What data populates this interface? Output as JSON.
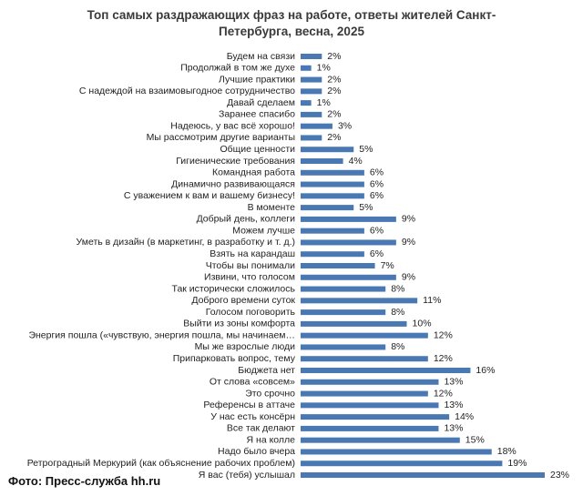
{
  "chart_data": {
    "type": "barh",
    "title": "Топ самых раздражающих фраз на работе, ответы жителей Санкт-Петербурга, весна, 2025",
    "caption": "Фото: Пресс-служба hh.ru",
    "color": "#4a78b3",
    "categories": [
      "Будем на связи",
      "Продолжай в том же духе",
      "Лучшие практики",
      "С надеждой на взаимовыгодное сотрудничество",
      "Давай сделаем",
      "Заранее спасибо",
      "Надеюсь, у вас всё хорошо!",
      "Мы рассмотрим другие варианты",
      "Общие ценности",
      "Гигиенические требования",
      "Командная работа",
      "Динамично развивающаяся",
      "С уважением к вам и вашему бизнесу!",
      "В моменте",
      "Добрый день, коллеги",
      "Можем лучше",
      "Уметь в дизайн (в маркетинг, в разработку и т. д.)",
      "Взять на карандаш",
      "Чтобы вы понимали",
      "Извини, что голосом",
      "Так исторически сложилось",
      "Доброго времени суток",
      "Голосом поговорить",
      "Выйти из зоны комфорта",
      "Энергия пошла («чувствую, энергия пошла, мы начинаем…",
      "Мы же взрослые люди",
      "Припарковать вопрос, тему",
      "Бюджета нет",
      "От слова «совсем»",
      "Это срочно",
      "Референсы в аттаче",
      "У нас есть консёрн",
      "Все так делают",
      "Я на колле",
      "Надо было вчера",
      "Ретроградный Меркурий (как объяснение рабочих проблем)",
      "Я вас (тебя) услышал"
    ],
    "values": [
      2,
      1,
      2,
      2,
      1,
      2,
      3,
      2,
      5,
      4,
      6,
      6,
      6,
      5,
      9,
      6,
      9,
      6,
      7,
      9,
      8,
      11,
      8,
      10,
      12,
      8,
      12,
      16,
      13,
      12,
      13,
      14,
      13,
      15,
      18,
      19,
      23
    ],
    "value_labels": [
      "2%",
      "1%",
      "2%",
      "2%",
      "1%",
      "2%",
      "3%",
      "2%",
      "5%",
      "4%",
      "6%",
      "6%",
      "6%",
      "5%",
      "9%",
      "6%",
      "9%",
      "6%",
      "7%",
      "9%",
      "8%",
      "11%",
      "8%",
      "10%",
      "12%",
      "8%",
      "12%",
      "16%",
      "13%",
      "12%",
      "13%",
      "14%",
      "13%",
      "15%",
      "18%",
      "19%",
      "23%"
    ]
  }
}
